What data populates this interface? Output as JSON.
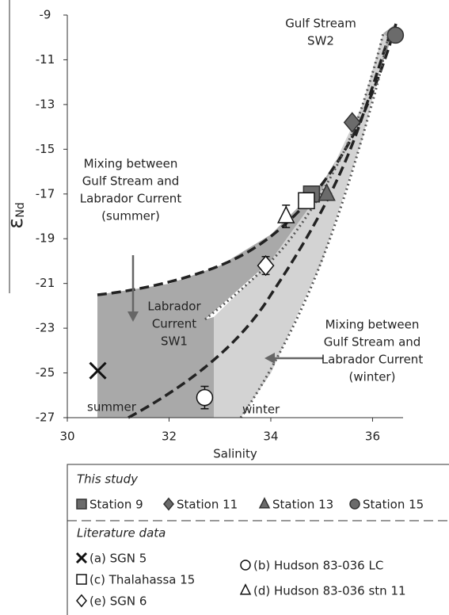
{
  "chart_data": {
    "type": "scatter",
    "xlabel": "Salinity",
    "ylabel": {
      "symbol": "ε",
      "subscript": "Nd"
    },
    "xlim": [
      30,
      36.6
    ],
    "ylim": [
      -27,
      -9
    ],
    "xticks": [
      30,
      32,
      34,
      36
    ],
    "yticks": [
      -9,
      -11,
      -13,
      -15,
      -17,
      -19,
      -21,
      -23,
      -25,
      -27
    ],
    "annotations": [
      {
        "lines": [
          "Gulf Stream",
          "SW2"
        ]
      },
      {
        "lines": [
          "Mixing between",
          "Gulf Stream and",
          "Labrador Current",
          "(summer)"
        ]
      },
      {
        "lines": [
          "Labrador",
          "Current",
          "SW1"
        ]
      },
      {
        "lines": [
          "summer"
        ]
      },
      {
        "lines": [
          "winter"
        ]
      },
      {
        "lines": [
          "Mixing between",
          "Gulf Stream and",
          "Labrador Current",
          "(winter)"
        ]
      }
    ],
    "legend_groups": [
      "This study",
      "Literature data"
    ],
    "series": [
      {
        "name": "Station 9",
        "marker": "square",
        "color": "#6b6b6b",
        "x": [
          34.8
        ],
        "y": [
          -17.0
        ]
      },
      {
        "name": "Station 11",
        "marker": "diamond",
        "color": "#6b6b6b",
        "x": [
          35.6
        ],
        "y": [
          -13.8
        ]
      },
      {
        "name": "Station 13",
        "marker": "triangle",
        "color": "#6b6b6b",
        "x": [
          35.1
        ],
        "y": [
          -17.0
        ]
      },
      {
        "name": "Station 15",
        "marker": "circle",
        "color": "#6b6b6b",
        "x": [
          36.45
        ],
        "y": [
          -9.9
        ]
      },
      {
        "name": "(a) SGN 5",
        "marker": "x",
        "color": "#ffffff",
        "x": [
          30.6
        ],
        "y": [
          -24.9
        ]
      },
      {
        "name": "(c) Thalahassa 15",
        "marker": "square",
        "color": "#ffffff",
        "x": [
          34.7
        ],
        "y": [
          -17.3
        ]
      },
      {
        "name": "(e) SGN 6",
        "marker": "diamond",
        "color": "#ffffff",
        "x": [
          33.9
        ],
        "y": [
          -20.2
        ],
        "errors": [
          0.4
        ]
      },
      {
        "name": "(b) Hudson 83-036 LC",
        "marker": "circle",
        "color": "#ffffff",
        "x": [
          32.7
        ],
        "y": [
          -26.1
        ],
        "errors": [
          0.5
        ]
      },
      {
        "name": "(d) Hudson 83-036 stn 11",
        "marker": "triangle",
        "color": "#ffffff",
        "x": [
          34.3
        ],
        "y": [
          -18.0
        ],
        "errors": [
          0.5
        ]
      }
    ]
  }
}
